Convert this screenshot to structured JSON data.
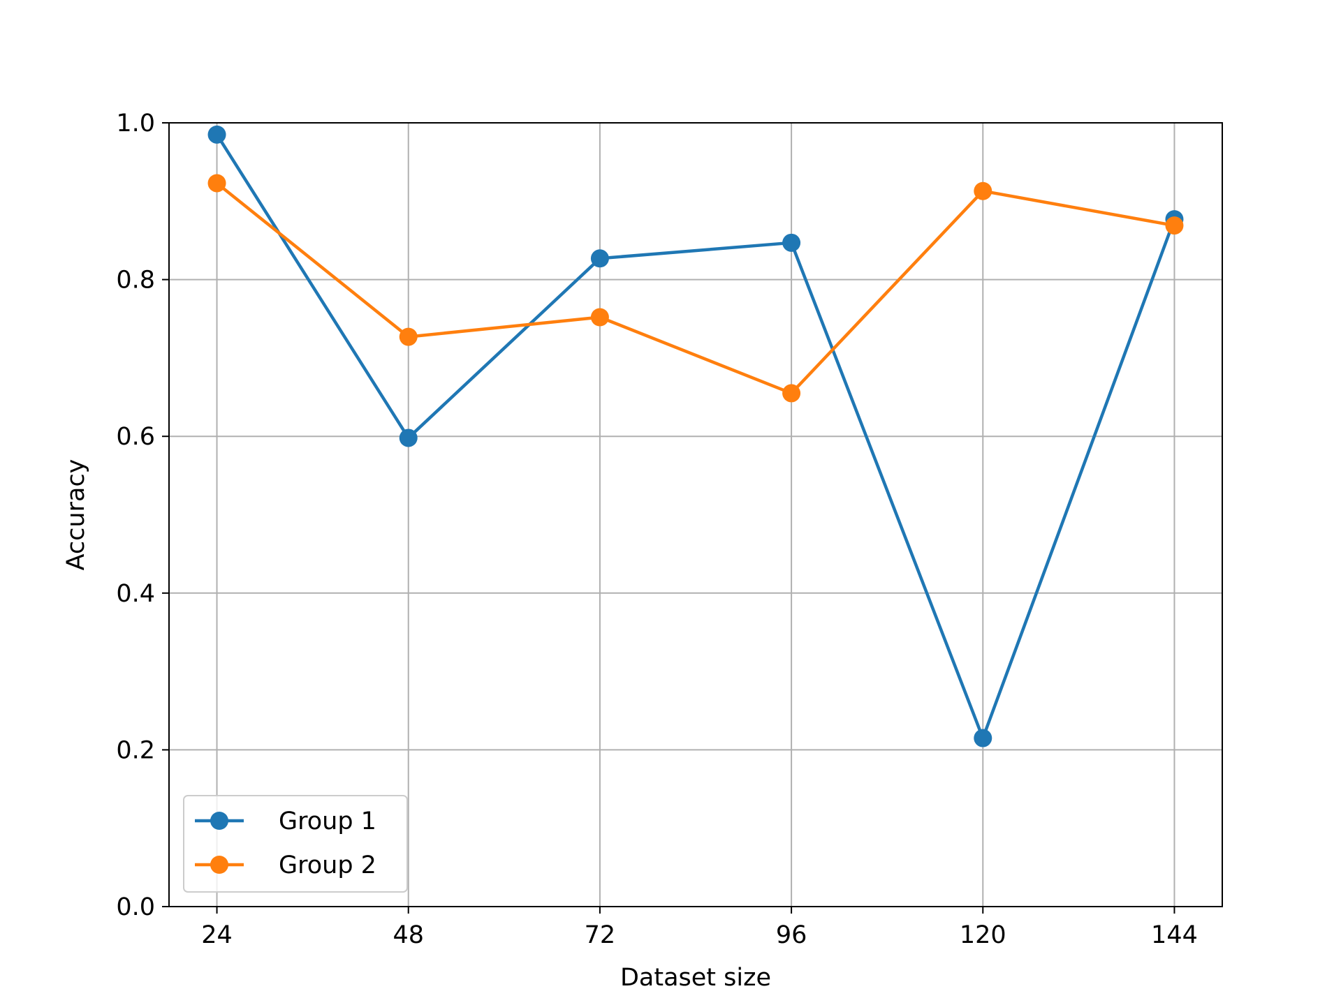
{
  "chart_data": {
    "type": "line",
    "title": "",
    "xlabel": "Dataset size",
    "ylabel": "Accuracy",
    "x": [
      24,
      48,
      72,
      96,
      120,
      144
    ],
    "x_tick_labels": [
      "24",
      "48",
      "72",
      "96",
      "120",
      "144"
    ],
    "xlim": [
      18,
      150
    ],
    "ylim": [
      0.0,
      1.0
    ],
    "y_ticks": [
      0.0,
      0.2,
      0.4,
      0.6,
      0.8,
      1.0
    ],
    "y_tick_labels": [
      "0.0",
      "0.2",
      "0.4",
      "0.6",
      "0.8",
      "1.0"
    ],
    "grid": true,
    "legend_position": "lower-left",
    "series": [
      {
        "name": "Group 1",
        "color": "#1f77b4",
        "values": [
          0.985,
          0.598,
          0.827,
          0.847,
          0.215,
          0.877
        ]
      },
      {
        "name": "Group 2",
        "color": "#ff7f0e",
        "values": [
          0.923,
          0.727,
          0.752,
          0.655,
          0.913,
          0.869
        ]
      }
    ]
  }
}
